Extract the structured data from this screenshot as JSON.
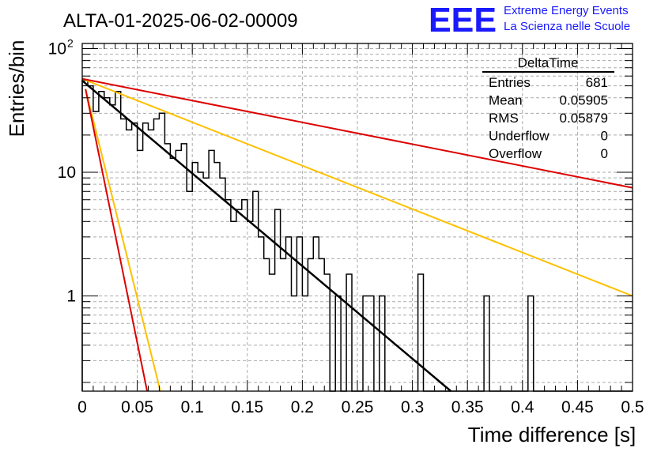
{
  "title": "ALTA-01-2025-06-02-00009",
  "branding": {
    "logo_text": "EEE",
    "line1": "Extreme Energy Events",
    "line2": "La Scienza nelle Scuole",
    "color": "#1a1aff"
  },
  "stats_box": {
    "name": "DeltaTime",
    "rows": [
      {
        "label": "Entries",
        "value": "681"
      },
      {
        "label": "Mean",
        "value": "0.05905"
      },
      {
        "label": "RMS",
        "value": "0.05879"
      },
      {
        "label": "Underflow",
        "value": "0"
      },
      {
        "label": "Overflow",
        "value": "0"
      }
    ]
  },
  "chart_data": {
    "type": "histogram",
    "xlabel": "Time difference [s]",
    "ylabel": "Entries/bin",
    "xlim": [
      0,
      0.5
    ],
    "ylim": [
      0.17,
      110
    ],
    "y_log": true,
    "grid": true,
    "x_ticks": [
      "0",
      "0.05",
      "0.1",
      "0.15",
      "0.2",
      "0.25",
      "0.3",
      "0.35",
      "0.4",
      "0.45",
      "0.5"
    ],
    "y_ticks": [
      {
        "value": 1,
        "label": "1"
      },
      {
        "value": 10,
        "label": "10"
      },
      {
        "value": 100,
        "label": "10",
        "sup": "2"
      }
    ],
    "bin_width": 0.005,
    "bin_counts": [
      55,
      50,
      31,
      45,
      40,
      35,
      45,
      27,
      22,
      25,
      15,
      25,
      22,
      27,
      30,
      17,
      13,
      15,
      17,
      7,
      12,
      10,
      9,
      15,
      12,
      9,
      6,
      4,
      5,
      6,
      4,
      7,
      3,
      2,
      1.5,
      5,
      2,
      3,
      1,
      3,
      1,
      2,
      3,
      2,
      1.5,
      0,
      1,
      0,
      1.5,
      0,
      0,
      1,
      1,
      0,
      1,
      0,
      0,
      0,
      0,
      0,
      0,
      1.5,
      0,
      0,
      0,
      0,
      0,
      0,
      0,
      0,
      0,
      0,
      0,
      1,
      0,
      0,
      0,
      0,
      0,
      0,
      0,
      1,
      0,
      0,
      0,
      0,
      0,
      0,
      0,
      0,
      0,
      0,
      0,
      0,
      0,
      0,
      0,
      0,
      0,
      0
    ],
    "fits": [
      {
        "color": "#000000",
        "points": [
          [
            0.0,
            55
          ],
          [
            0.335,
            0.17
          ]
        ]
      },
      {
        "color": "#ffc000",
        "points": [
          [
            0.0,
            57
          ],
          [
            0.5,
            1.0
          ]
        ]
      },
      {
        "color": "#dd0000",
        "points": [
          [
            0.0,
            57
          ],
          [
            0.5,
            7.5
          ]
        ]
      },
      {
        "color": "#ffc000",
        "points": [
          [
            0.003,
            47
          ],
          [
            0.071,
            0.17
          ]
        ]
      },
      {
        "color": "#dd0000",
        "points": [
          [
            0.003,
            47
          ],
          [
            0.059,
            0.17
          ]
        ]
      }
    ]
  }
}
